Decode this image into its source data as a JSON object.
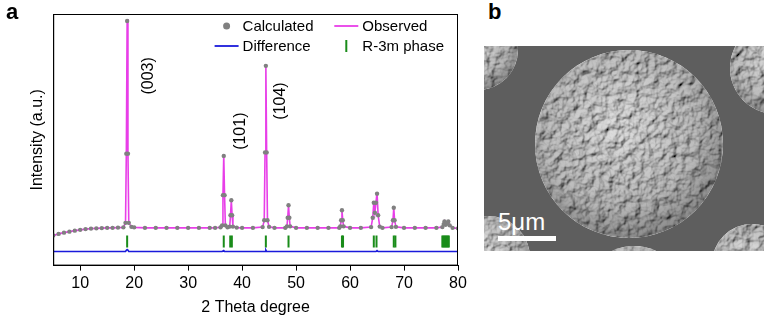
{
  "chart_data": {
    "type": "line",
    "panel_label": "a",
    "x_label": "2 Theta degree",
    "y_label": "Intensity (a.u.)",
    "xlim": [
      5,
      80
    ],
    "xticks": [
      10,
      20,
      30,
      40,
      50,
      60,
      70,
      80
    ],
    "ylim": [
      0,
      100
    ],
    "tick_labels": "x",
    "grid": false,
    "legend": "upper right",
    "x": [
      5,
      6,
      7,
      8,
      9,
      10,
      11,
      12,
      13,
      14,
      15,
      16,
      17,
      18,
      18.4,
      18.55,
      18.7,
      18.85,
      19.0,
      19.5,
      20,
      22,
      24,
      26,
      28,
      30,
      32,
      34,
      35,
      36,
      36.3,
      36.45,
      36.6,
      36.75,
      36.9,
      37.3,
      37.7,
      37.85,
      38.0,
      38.15,
      38.3,
      39,
      40,
      42,
      43.8,
      44.1,
      44.25,
      44.4,
      44.55,
      44.7,
      45,
      46,
      48,
      48.3,
      48.45,
      48.6,
      48.75,
      48.9,
      50,
      52,
      54,
      56,
      58,
      58.2,
      58.35,
      58.5,
      58.65,
      58.8,
      60,
      62,
      63.9,
      64.2,
      64.4,
      64.6,
      64.8,
      65.0,
      65.2,
      65.5,
      66,
      67.7,
      67.95,
      68.1,
      68.25,
      68.5,
      70,
      72,
      74,
      76,
      77.1,
      77.35,
      77.5,
      77.7,
      77.95,
      78.2,
      78.45,
      79,
      80
    ],
    "series": [
      {
        "name": "Calculated",
        "color": "#808080",
        "marker": "circle",
        "line_style": "none",
        "values": [
          12,
          12.6,
          13.1,
          13.5,
          13.9,
          14.2,
          14.5,
          14.7,
          14.8,
          14.9,
          15,
          15,
          15.1,
          15.2,
          17,
          44.5,
          97.2,
          44.5,
          17,
          15.4,
          15.2,
          15,
          15,
          15,
          15,
          15,
          15,
          15,
          15,
          15.2,
          16,
          28,
          43.6,
          28,
          16,
          15.2,
          15.5,
          20,
          26,
          20,
          15.5,
          15.1,
          15,
          15,
          15.3,
          18,
          45,
          79.4,
          45,
          18,
          15.4,
          15,
          15,
          15.6,
          19,
          24,
          19,
          15.6,
          15,
          15,
          15,
          15,
          15,
          15.6,
          18,
          22,
          18,
          15.6,
          15,
          15,
          15.3,
          19,
          25,
          21,
          25,
          28.6,
          20,
          15.5,
          15,
          15.3,
          18,
          23,
          18,
          15.4,
          15,
          15,
          15,
          15,
          15.3,
          16.5,
          17.5,
          16.2,
          16.8,
          17.5,
          16,
          15,
          14.8
        ]
      },
      {
        "name": "Observed",
        "color": "#e83ee8",
        "marker": "none",
        "line_style": "solid",
        "values": [
          12,
          12.6,
          13.1,
          13.5,
          13.9,
          14.2,
          14.5,
          14.7,
          14.8,
          14.9,
          15,
          15,
          15.1,
          15.2,
          17,
          45,
          98,
          45,
          17,
          15.4,
          15.2,
          15,
          15,
          15,
          15,
          15,
          15,
          15,
          15,
          15.2,
          16,
          28,
          44,
          28,
          16,
          15.2,
          15.5,
          20,
          26,
          20,
          15.5,
          15.1,
          15,
          15,
          15.3,
          18,
          45,
          80,
          45,
          18,
          15.4,
          15,
          15,
          15.6,
          19,
          24,
          19,
          15.6,
          15,
          15,
          15,
          15,
          15,
          15.6,
          18,
          22,
          18,
          15.6,
          15,
          15,
          15.3,
          19,
          25,
          21,
          25,
          29,
          20,
          15.5,
          15,
          15.3,
          18,
          23,
          18,
          15.4,
          15,
          15,
          15,
          15,
          15.3,
          16.5,
          17.5,
          16.2,
          16.8,
          17.5,
          16,
          15,
          14.8
        ]
      },
      {
        "name": "Difference",
        "color": "#1a1adb",
        "marker": "none",
        "line_style": "solid",
        "values": [
          5.6,
          5.6,
          5.6,
          5.6,
          5.6,
          5.6,
          5.6,
          5.6,
          5.6,
          5.6,
          5.6,
          5.6,
          5.6,
          5.6,
          5.6,
          6.1,
          6.4,
          6.1,
          5.6,
          5.6,
          5.6,
          5.6,
          5.6,
          5.6,
          5.6,
          5.6,
          5.6,
          5.6,
          5.6,
          5.6,
          5.6,
          5.6,
          6.0,
          5.6,
          5.6,
          5.6,
          5.6,
          5.6,
          5.6,
          5.6,
          5.6,
          5.6,
          5.6,
          5.6,
          5.6,
          5.6,
          5.6,
          6.2,
          5.6,
          5.6,
          5.6,
          5.6,
          5.6,
          5.6,
          5.6,
          5.6,
          5.6,
          5.6,
          5.6,
          5.6,
          5.6,
          5.6,
          5.6,
          5.6,
          5.6,
          5.6,
          5.6,
          5.6,
          5.6,
          5.6,
          5.6,
          5.6,
          5.6,
          5.6,
          5.6,
          6.0,
          5.6,
          5.6,
          5.6,
          5.6,
          5.6,
          5.6,
          5.6,
          5.6,
          5.6,
          5.6,
          5.6,
          5.6,
          5.6,
          5.6,
          5.6,
          5.6,
          5.6,
          5.6,
          5.6,
          5.6,
          5.6
        ]
      },
      {
        "name": "R-3m phase",
        "color": "#1a8c1a",
        "marker": "vline",
        "line_style": "none",
        "x": [
          18.7,
          36.6,
          37.8,
          38.1,
          44.4,
          48.6,
          58.5,
          58.7,
          64.4,
          64.9,
          68.1,
          68.4,
          77.1,
          77.3,
          77.5,
          77.7,
          77.9,
          78.1,
          78.3
        ],
        "values": [
          9.6,
          9.6,
          9.6,
          9.6,
          9.6,
          9.6,
          9.6,
          9.6,
          9.6,
          9.6,
          9.6,
          9.6,
          9.6,
          9.6,
          9.6,
          9.6,
          9.6,
          9.6,
          9.6
        ]
      }
    ],
    "annotations": [
      {
        "text": "(003)",
        "x": 22.6,
        "y": 68
      },
      {
        "text": "(101)",
        "x": 39.8,
        "y": 46
      },
      {
        "text": "(104)",
        "x": 47.2,
        "y": 58
      }
    ]
  },
  "image_panel": {
    "panel_label": "b",
    "scale_bar_label": "5μm"
  }
}
